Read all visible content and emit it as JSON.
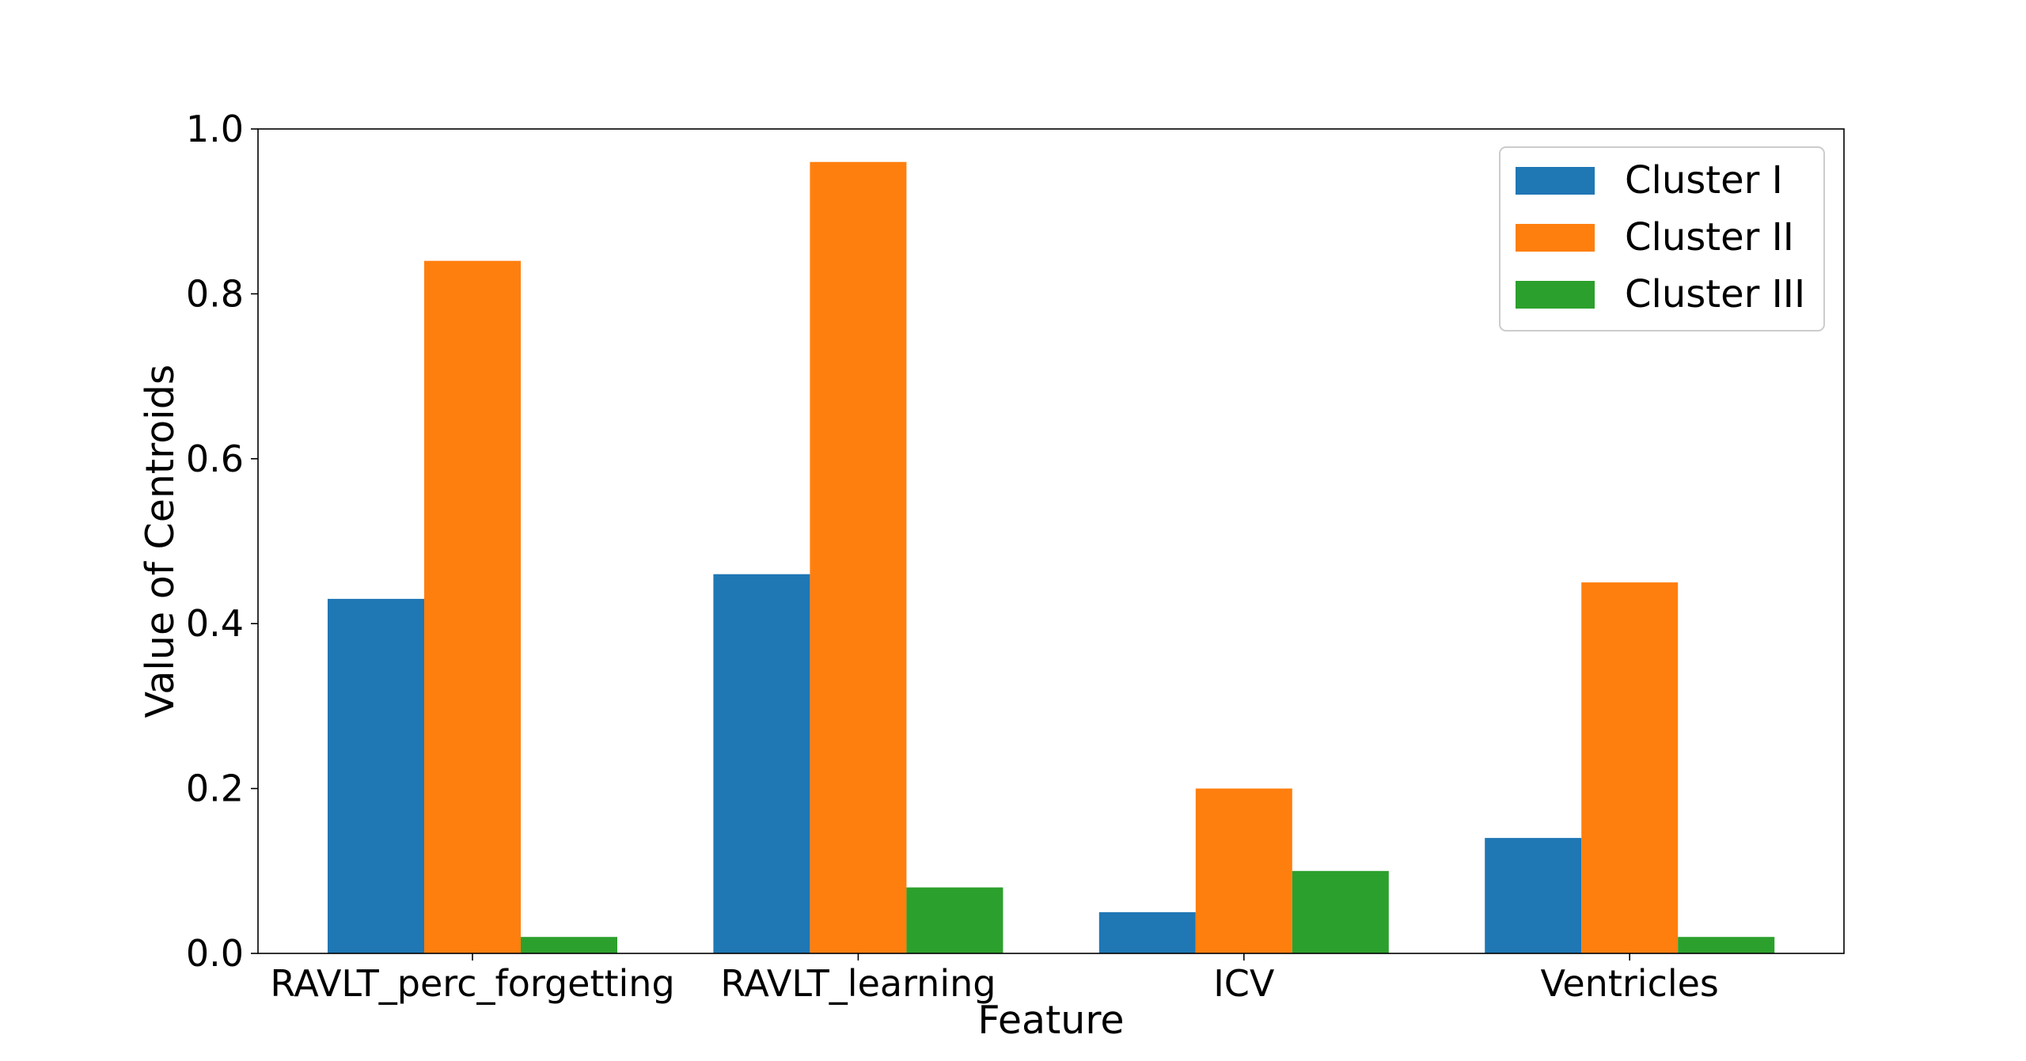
{
  "chart_data": {
    "type": "bar",
    "title": "",
    "xlabel": "Feature",
    "ylabel": "Value of Centroids",
    "categories": [
      "RAVLT_perc_forgetting",
      "RAVLT_learning",
      "ICV",
      "Ventricles"
    ],
    "series": [
      {
        "name": "Cluster I",
        "color": "#1f77b4",
        "values": [
          0.43,
          0.46,
          0.05,
          0.14
        ]
      },
      {
        "name": "Cluster II",
        "color": "#ff7f0e",
        "values": [
          0.84,
          0.96,
          0.2,
          0.45
        ]
      },
      {
        "name": "Cluster III",
        "color": "#2ca02c",
        "values": [
          0.02,
          0.08,
          0.1,
          0.02
        ]
      }
    ],
    "ylim": [
      0,
      1.0
    ],
    "yticks": [
      "0.0",
      "0.2",
      "0.4",
      "0.6",
      "0.8",
      "1.0"
    ],
    "grid": false,
    "legend_position": "top-right"
  }
}
